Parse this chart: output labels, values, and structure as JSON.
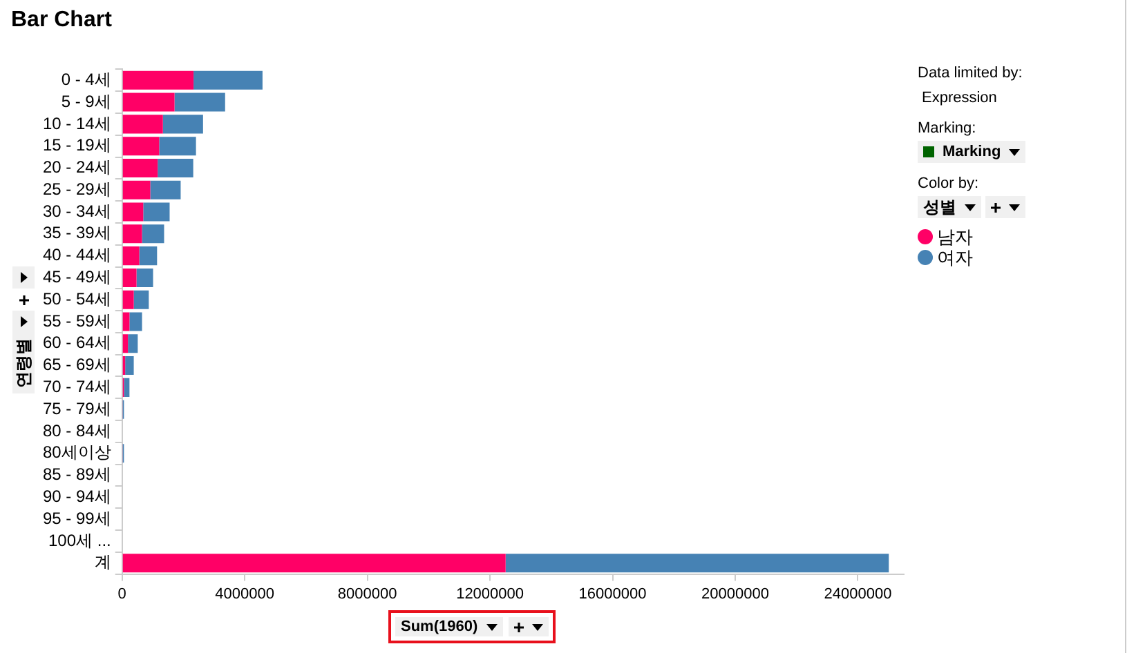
{
  "chart_data": {
    "type": "bar",
    "title": "Bar Chart",
    "orientation": "horizontal",
    "stacked": true,
    "xlabel": "Sum(1960)",
    "ylabel": "연령별",
    "legend_title": "성별",
    "legend": "right",
    "categories": [
      "0 - 4세",
      "5 - 9세",
      "10 - 14세",
      "15 - 19세",
      "20 - 24세",
      "25 - 29세",
      "30 - 34세",
      "35 - 39세",
      "40 - 44세",
      "45 - 49세",
      "50 - 54세",
      "55 - 59세",
      "60 - 64세",
      "65 - 69세",
      "70 - 74세",
      "75 - 79세",
      "80 - 84세",
      "80세이상",
      "85 - 89세",
      "90 - 94세",
      "95 - 99세",
      "100세 ...",
      "계"
    ],
    "series": [
      {
        "name": "남자",
        "color": "#ff0066",
        "values": [
          2330000,
          1710000,
          1330000,
          1210000,
          1160000,
          920000,
          690000,
          650000,
          560000,
          470000,
          380000,
          240000,
          190000,
          100000,
          60000,
          20000,
          0,
          20000,
          0,
          0,
          0,
          0,
          12510000
        ]
      },
      {
        "name": "여자",
        "color": "#4682b4",
        "values": [
          2250000,
          1650000,
          1310000,
          1200000,
          1160000,
          990000,
          860000,
          720000,
          580000,
          540000,
          490000,
          410000,
          320000,
          280000,
          180000,
          40000,
          0,
          40000,
          0,
          0,
          0,
          0,
          12500000
        ]
      }
    ],
    "xlim": [
      0,
      25500000
    ],
    "xticks": [
      0,
      4000000,
      8000000,
      12000000,
      16000000,
      20000000,
      24000000
    ],
    "grid": false,
    "annotations": [
      "Data limited by:",
      "Expression",
      "Marking:",
      "Marking",
      "Color by:"
    ]
  }
}
